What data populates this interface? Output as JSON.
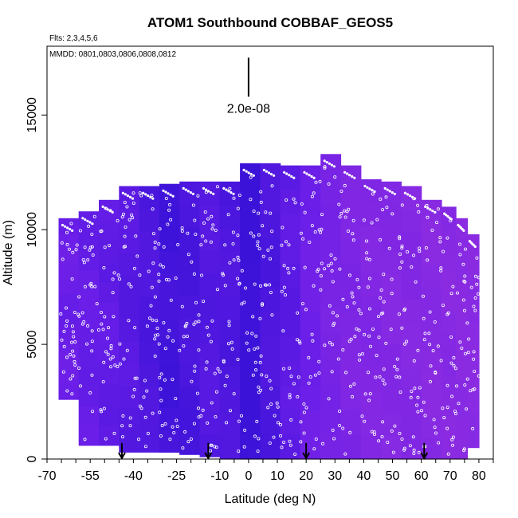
{
  "chart_data": {
    "type": "heatmap",
    "title": "ATOM1 Southbound COBBAF_GEOS5",
    "flights_note": "Flts: 2,3,4,5,6",
    "dates_note": "MMDD: 0801,0803,0806,0808,0812",
    "xlabel": "Latitude (deg N)",
    "ylabel": "Altitude (m)",
    "xlim": [
      -70,
      85
    ],
    "ylim": [
      0,
      18000
    ],
    "x_tick_labels": [
      "-70",
      "-55",
      "-40",
      "-25",
      "-10",
      "0",
      "10",
      "20",
      "30",
      "40",
      "50",
      "60",
      "70",
      "80"
    ],
    "x_tick_values": [
      -70,
      -55,
      -40,
      -25,
      -10,
      0,
      10,
      20,
      30,
      40,
      50,
      60,
      70,
      80
    ],
    "y_tick_values": [
      0,
      5000,
      10000,
      15000
    ],
    "y_tick_labels": [
      "0",
      "5000",
      "10000",
      "15000"
    ],
    "scale_bar_label": "2.0e-08",
    "scale_bar_x": 0,
    "scale_bar_range": [
      15800,
      17500
    ],
    "profile_arrow_latitudes": [
      -44,
      -14,
      20,
      61
    ],
    "colors": {
      "fill_low": "#3b12d8",
      "fill_mid": "#6a1ee8",
      "fill_high": "#8a2be2",
      "points": "#ffffff",
      "axes": "#000000"
    },
    "columns": [
      {
        "lat": [
          -66,
          -59
        ],
        "top": 10500,
        "bottom": 2600,
        "value": 0.5
      },
      {
        "lat": [
          -59,
          -52
        ],
        "top": 10800,
        "bottom": 600,
        "value": 0.45
      },
      {
        "lat": [
          -52,
          -45
        ],
        "top": 11300,
        "bottom": 600,
        "value": 0.4
      },
      {
        "lat": [
          -45,
          -38
        ],
        "top": 11900,
        "bottom": 300,
        "value": 0.3
      },
      {
        "lat": [
          -38,
          -31
        ],
        "top": 11900,
        "bottom": 300,
        "value": 0.2
      },
      {
        "lat": [
          -31,
          -24
        ],
        "top": 12000,
        "bottom": 300,
        "value": 0.08
      },
      {
        "lat": [
          -24,
          -17
        ],
        "top": 12100,
        "bottom": 200,
        "value": 0.15
      },
      {
        "lat": [
          -17,
          -10
        ],
        "top": 12100,
        "bottom": 100,
        "value": 0.25
      },
      {
        "lat": [
          -10,
          -3
        ],
        "top": 12100,
        "bottom": 0,
        "value": 0.2
      },
      {
        "lat": [
          -3,
          4
        ],
        "top": 12900,
        "bottom": 0,
        "value": 0.0
      },
      {
        "lat": [
          4,
          11
        ],
        "top": 12900,
        "bottom": 0,
        "value": 0.2
      },
      {
        "lat": [
          11,
          18
        ],
        "top": 12800,
        "bottom": 0,
        "value": 0.35
      },
      {
        "lat": [
          18,
          25
        ],
        "top": 12800,
        "bottom": 0,
        "value": 0.55
      },
      {
        "lat": [
          25,
          32
        ],
        "top": 13300,
        "bottom": 0,
        "value": 0.7
      },
      {
        "lat": [
          32,
          39
        ],
        "top": 12800,
        "bottom": 0,
        "value": 0.8
      },
      {
        "lat": [
          39,
          46
        ],
        "top": 12200,
        "bottom": 0,
        "value": 0.85
      },
      {
        "lat": [
          46,
          53
        ],
        "top": 12100,
        "bottom": 0,
        "value": 0.9
      },
      {
        "lat": [
          53,
          60
        ],
        "top": 11900,
        "bottom": 0,
        "value": 0.9
      },
      {
        "lat": [
          60,
          67
        ],
        "top": 11300,
        "bottom": 0,
        "value": 0.95
      },
      {
        "lat": [
          67,
          72
        ],
        "top": 11000,
        "bottom": 0,
        "value": 0.95
      },
      {
        "lat": [
          72,
          76
        ],
        "top": 10500,
        "bottom": 0,
        "value": 1.0
      },
      {
        "lat": [
          76,
          80
        ],
        "top": 9800,
        "bottom": 500,
        "value": 1.0
      }
    ]
  }
}
